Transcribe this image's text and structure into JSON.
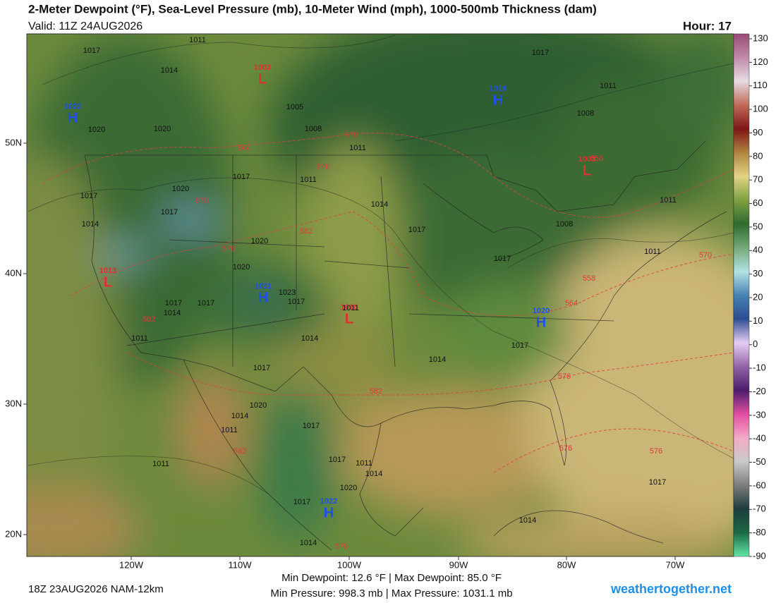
{
  "header": {
    "title": "2-Meter Dewpoint (°F), Sea-Level Pressure (mb), 10-Meter Wind (mph), 1000-500mb Thickness (dam)",
    "valid": "Valid: 11Z 24AUG2026",
    "hour": "Hour: 17"
  },
  "colorbar": {
    "ticks": [
      130,
      120,
      110,
      100,
      90,
      80,
      70,
      60,
      50,
      40,
      30,
      20,
      10,
      0,
      -10,
      -20,
      -30,
      -40,
      -50,
      -60,
      -70,
      -80,
      -90
    ]
  },
  "map": {
    "lat_labels": [
      "50N",
      "40N",
      "30N",
      "20N"
    ],
    "lon_labels": [
      "120W",
      "110W",
      "100W",
      "90W",
      "80W",
      "70W"
    ],
    "pressure_centers": [
      {
        "letter": "H",
        "value": "1022"
      },
      {
        "letter": "L",
        "value": "1003"
      },
      {
        "letter": "H",
        "value": "1018"
      },
      {
        "letter": "L",
        "value": "1003"
      },
      {
        "letter": "L",
        "value": "1013"
      },
      {
        "letter": "H",
        "value": "1021"
      },
      {
        "letter": "L",
        "value": "1010"
      },
      {
        "letter": "H",
        "value": "1020"
      },
      {
        "letter": "H",
        "value": "1022"
      }
    ],
    "isobar_labels": [
      "1011",
      "1017",
      "1014",
      "1005",
      "1008",
      "1020",
      "1020",
      "1011",
      "1017",
      "1011",
      "1008",
      "1017",
      "1011",
      "1020",
      "1017",
      "1017",
      "1014",
      "1014",
      "1017",
      "1020",
      "1020",
      "1023",
      "1017",
      "1017",
      "1014",
      "1017",
      "1011",
      "1014",
      "1011",
      "1017",
      "1014",
      "1017",
      "1008",
      "1011",
      "1011",
      "1017",
      "1020",
      "1014",
      "1011",
      "1017",
      "1017",
      "1014",
      "1020",
      "1017",
      "1014",
      "1014",
      "1017",
      "1011",
      "1011"
    ],
    "thickness_labels": [
      "564",
      "570",
      "576",
      "570",
      "582",
      "576",
      "582",
      "582",
      "558",
      "558",
      "564",
      "570",
      "576",
      "576",
      "576",
      "582",
      "576"
    ]
  },
  "footer": {
    "run": "18Z 23AUG2026 NAM-12km",
    "dewpoint_range": "Min Dewpoint:  12.6 °F | Max Dewpoint:  85.0 °F",
    "pressure_range": "Min Pressure: 998.3 mb | Max Pressure: 1031.1 mb",
    "site": "weathertogether.net"
  }
}
